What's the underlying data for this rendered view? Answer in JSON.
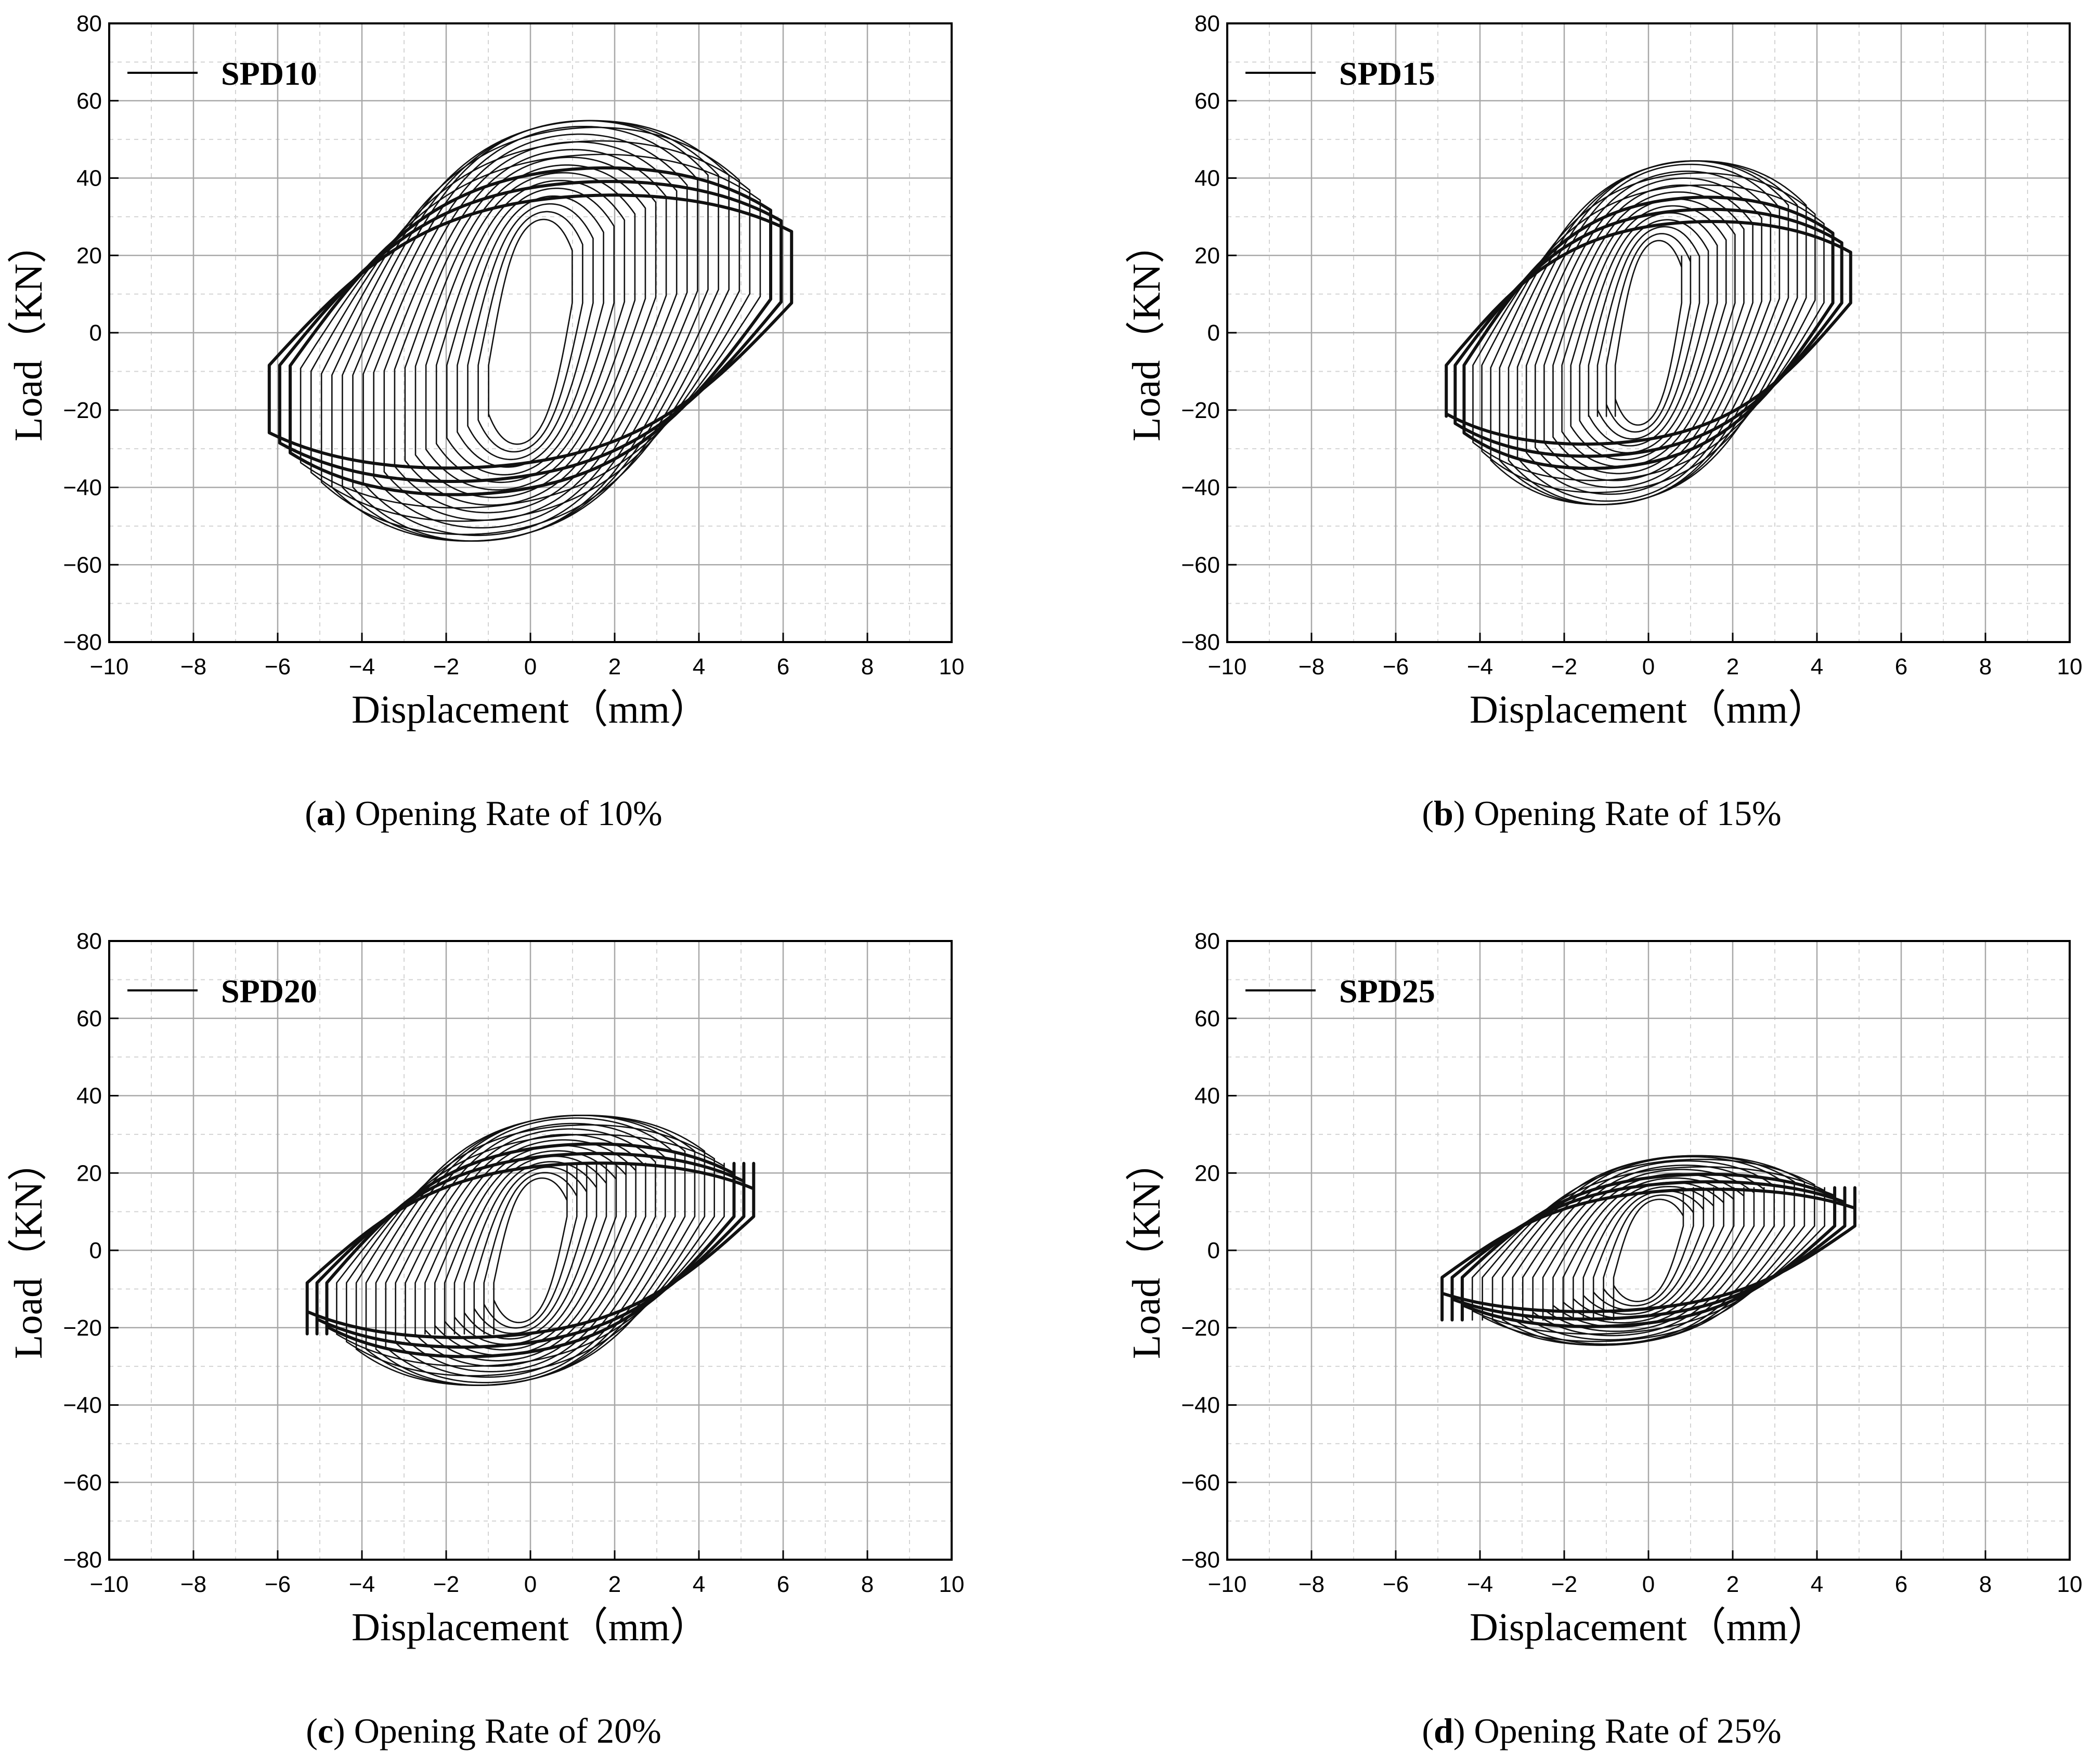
{
  "chart_data": [
    {
      "type": "line",
      "panel": "a",
      "legend": "SPD10",
      "legend_position": "top-left",
      "xlabel": "Displacement（mm）",
      "ylabel": "Load（KN）",
      "xlim": [
        -10,
        10
      ],
      "ylim": [
        -80,
        80
      ],
      "xticks": [
        -10,
        -8,
        -6,
        -4,
        -2,
        0,
        2,
        4,
        6,
        8,
        10
      ],
      "yticks": [
        -80,
        -60,
        -40,
        -20,
        0,
        20,
        40,
        60,
        80
      ],
      "grid": true,
      "caption_letter": "a",
      "caption_text": " Opening Rate of 10%",
      "loops": 22,
      "max_displacement": 6.2,
      "peak_load": 58,
      "end_load": 22,
      "min_displacement": -6.2,
      "min_load": -57,
      "min_end_load": -24
    },
    {
      "type": "line",
      "panel": "b",
      "legend": "SPD15",
      "legend_position": "top-left",
      "xlabel": "Displacement（mm）",
      "ylabel": "Load（KN）",
      "xlim": [
        -10,
        10
      ],
      "ylim": [
        -80,
        80
      ],
      "xticks": [
        -10,
        -8,
        -6,
        -4,
        -2,
        0,
        2,
        4,
        6,
        8,
        10
      ],
      "yticks": [
        -80,
        -60,
        -40,
        -20,
        0,
        20,
        40,
        60,
        80
      ],
      "grid": true,
      "caption_letter": "b",
      "caption_text": " Opening Rate of 15%",
      "loops": 20,
      "max_displacement": 4.8,
      "peak_load": 47,
      "end_load": 22,
      "min_displacement": -4.8,
      "min_load": -47,
      "min_end_load": -24
    },
    {
      "type": "line",
      "panel": "c",
      "legend": "SPD20",
      "legend_position": "top-left",
      "xlabel": "Displacement（mm）",
      "ylabel": "Load（KN）",
      "xlim": [
        -10,
        10
      ],
      "ylim": [
        -80,
        80
      ],
      "xticks": [
        -10,
        -8,
        -6,
        -4,
        -2,
        0,
        2,
        4,
        6,
        8,
        10
      ],
      "yticks": [
        -80,
        -60,
        -40,
        -20,
        0,
        20,
        40,
        60,
        80
      ],
      "grid": true,
      "caption_letter": "c",
      "caption_text": " Opening Rate of 20%",
      "loops": 20,
      "max_displacement": 5.3,
      "peak_load": 37,
      "end_load": 25,
      "min_displacement": -5.3,
      "min_load": -37,
      "min_end_load": -24
    },
    {
      "type": "line",
      "panel": "d",
      "legend": "SPD25",
      "legend_position": "top-left",
      "xlabel": "Displacement（mm）",
      "ylabel": "Load（KN）",
      "xlim": [
        -10,
        10
      ],
      "ylim": [
        -80,
        80
      ],
      "xticks": [
        -10,
        -8,
        -6,
        -4,
        -2,
        0,
        2,
        4,
        6,
        8,
        10
      ],
      "yticks": [
        -80,
        -60,
        -40,
        -20,
        0,
        20,
        40,
        60,
        80
      ],
      "grid": true,
      "caption_letter": "d",
      "caption_text": " Opening Rate of 25%",
      "loops": 18,
      "max_displacement": 4.9,
      "peak_load": 26,
      "end_load": 18,
      "min_displacement": -4.9,
      "min_load": -26,
      "min_end_load": -20
    }
  ]
}
